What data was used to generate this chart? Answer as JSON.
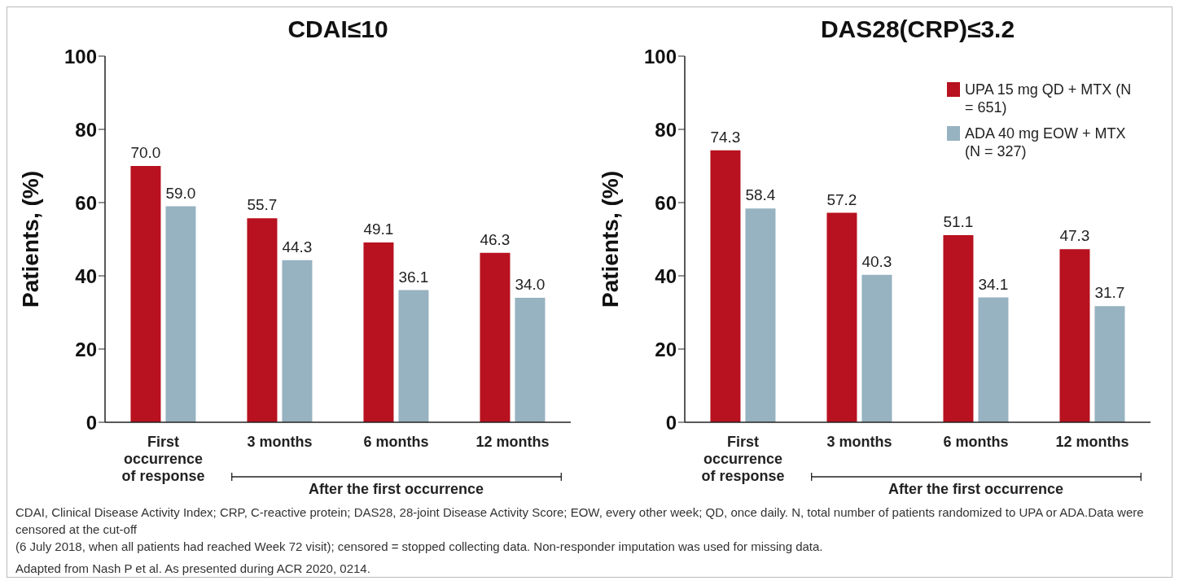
{
  "chart_data": [
    {
      "type": "bar",
      "title": "CDAI≤10",
      "ylabel": "Patients, (%)",
      "categories": [
        "First occurrence of response",
        "3 months",
        "6 months",
        "12 months"
      ],
      "annotations": [
        "After the first occurrence"
      ],
      "ylim": [
        0,
        100
      ],
      "yticks": [
        0,
        20,
        40,
        60,
        80,
        100
      ],
      "grid": false,
      "legend": false,
      "series": [
        {
          "color": "#b8111f",
          "values": [
            70.0,
            55.7,
            49.1,
            46.3
          ],
          "value_labels": [
            "70.0",
            "55.7",
            "49.1",
            "46.3"
          ]
        },
        {
          "color": "#97b2c0",
          "values": [
            59.0,
            44.3,
            36.1,
            34.0
          ],
          "value_labels": [
            "59.0",
            "44.3",
            "36.1",
            "34.0"
          ]
        }
      ]
    },
    {
      "type": "bar",
      "title": "DAS28(CRP)≤3.2",
      "ylabel": "Patients, (%)",
      "categories": [
        "First occurrence of response",
        "3 months",
        "6 months",
        "12 months"
      ],
      "annotations": [
        "After the first occurrence"
      ],
      "ylim": [
        0,
        100
      ],
      "yticks": [
        0,
        20,
        40,
        60,
        80,
        100
      ],
      "grid": false,
      "legend": "top right",
      "series": [
        {
          "name": "UPA 15 mg QD + MTX (N = 651)",
          "color": "#b8111f",
          "values": [
            74.3,
            57.2,
            51.1,
            47.3
          ],
          "value_labels": [
            "74.3",
            "57.2",
            "51.1",
            "47.3"
          ]
        },
        {
          "name": "ADA 40 mg EOW + MTX (N = 327)",
          "color": "#97b2c0",
          "values": [
            58.4,
            40.3,
            34.1,
            31.7
          ],
          "value_labels": [
            "58.4",
            "40.3",
            "34.1",
            "31.7"
          ]
        }
      ]
    },
    {
      "type": "other",
      "annotations": [
        "CDAI, Clinical Disease Activity Index; CRP, C-reactive protein; DAS28, 28-joint Disease Activity Score; EOW, every other week; QD, once daily. N, total number of patients randomized to UPA or ADA.Data were censored at the cut-off",
        "(6 July 2018, when all patients had reached Week 72 visit); censored = stopped collecting data. Non-responder imputation was used for missing data.",
        "Adapted from Nash P et al. As presented during ACR 2020, 0214."
      ]
    }
  ]
}
